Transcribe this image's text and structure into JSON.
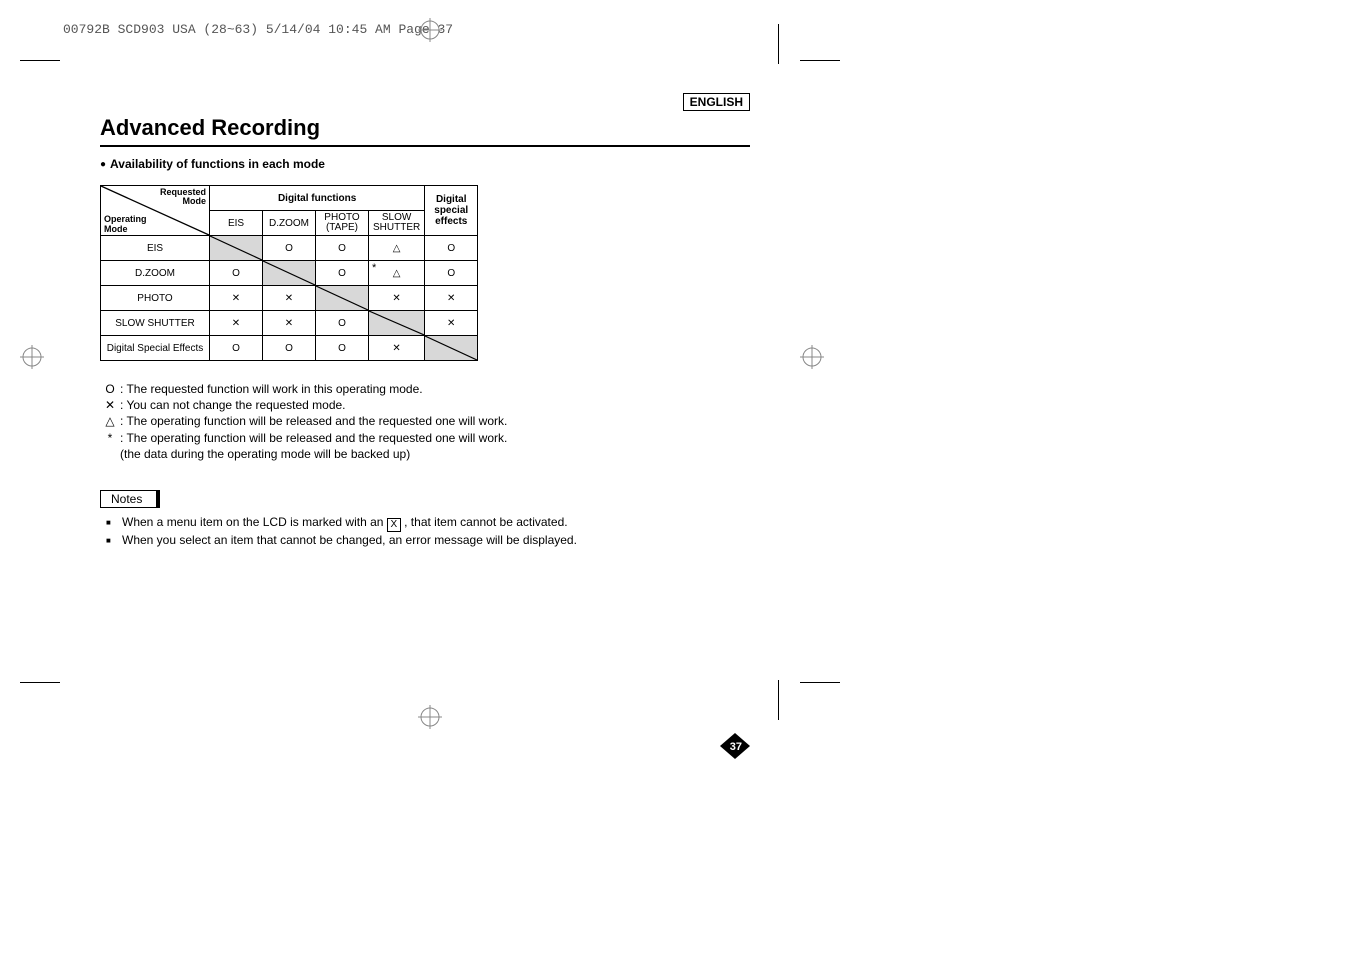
{
  "header": {
    "slug": "00792B SCD903 USA (28~63)  5/14/04 10:45 AM  Page 37"
  },
  "lang": "ENGLISH",
  "title": "Advanced Recording",
  "subtitle": "Availability of functions in each mode",
  "table": {
    "top_header": {
      "group1": "Digital functions",
      "group2_a": "Digital",
      "group2_b": "special",
      "group2_c": "effects"
    },
    "diag": {
      "requested": "Requested",
      "mode": "Mode",
      "operating": "Operating",
      "mode2": "Mode"
    },
    "cols": [
      "EIS",
      "D.ZOOM",
      "PHOTO\n(TAPE)",
      "SLOW\nSHUTTER"
    ],
    "rows": [
      {
        "label": "EIS",
        "cells": [
          "diag",
          "O",
          "O",
          "tri",
          "O"
        ]
      },
      {
        "label": "D.ZOOM",
        "cells": [
          "O",
          "diag",
          "O",
          "star-tri",
          "O"
        ]
      },
      {
        "label": "PHOTO",
        "cells": [
          "X",
          "X",
          "diag",
          "X",
          "X"
        ]
      },
      {
        "label": "SLOW SHUTTER",
        "cells": [
          "X",
          "X",
          "O",
          "diag",
          "X"
        ]
      },
      {
        "label": "Digital Special Effects",
        "cells": [
          "O",
          "O",
          "O",
          "X",
          "diag"
        ]
      }
    ]
  },
  "legend": [
    {
      "sym": "O",
      "txt": ": The requested function will work in this operating mode."
    },
    {
      "sym": "✕",
      "txt": ": You can not change the requested mode."
    },
    {
      "sym": "△",
      "txt": ": The operating function will be released and the requested one will work."
    },
    {
      "sym": "*",
      "txt": ": The operating function will be released and the requested one will work."
    },
    {
      "sym": "",
      "txt": "  (the data during the operating mode will be backed up)"
    }
  ],
  "notes_label": "Notes",
  "notes": [
    "When a menu item on the LCD is marked with an [X] , that item cannot be activated.",
    "When you select an item that cannot be changed, an error message will be displayed."
  ],
  "page_number": "37",
  "colors": {
    "shade": "#d8d8d8",
    "text": "#000000"
  }
}
